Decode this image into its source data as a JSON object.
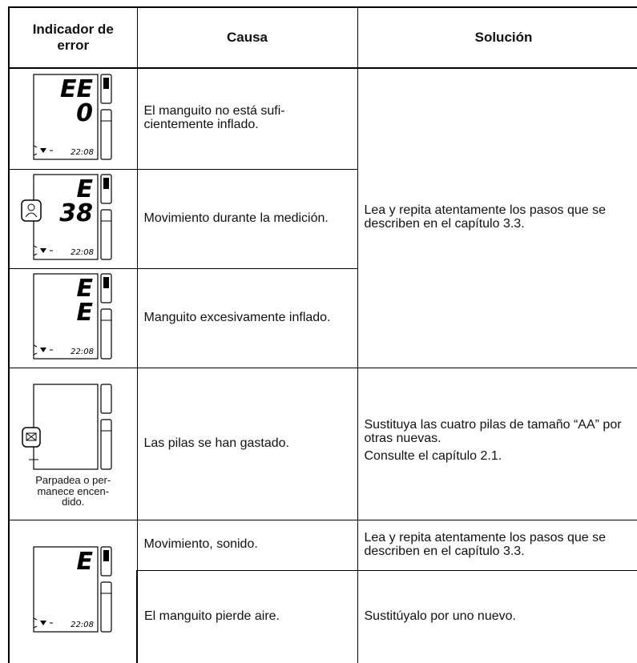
{
  "header": {
    "indicator": "Indicador de error",
    "cause": "Causa",
    "solution": "Solución"
  },
  "rows": [
    {
      "display": [
        "EE",
        "0"
      ],
      "time": "22:08",
      "cause": "El manguito no está sufi-\ncientemente inflado.",
      "solution": "Lea y repita atentamente los pasos que se describen en el capítulo 3.3."
    },
    {
      "display": [
        "E",
        "38"
      ],
      "time": "22:08",
      "cause": "Movimiento durante la medición."
    },
    {
      "display": [
        "E",
        "E"
      ],
      "time": "22:08",
      "cause": "Manguito excesivamente inflado."
    },
    {
      "caption": "Parpadea o per-\nmanece encen-\ndido.",
      "cause": "Las pilas se han gastado.",
      "solution": [
        "Sustituya las cuatro pilas de tamaño “AA” por otras nuevas.",
        "Consulte el capítulo 2.1."
      ]
    },
    {
      "display": [
        "E"
      ],
      "time": "22:08",
      "cause": "Movimiento, sonido.",
      "solution": "Lea y repita atentamente los pasos que se describen en el capítulo 3.3."
    },
    {
      "cause": "El manguito pierde aire.",
      "solution": "Sustitúyalo por uno nuevo."
    }
  ]
}
